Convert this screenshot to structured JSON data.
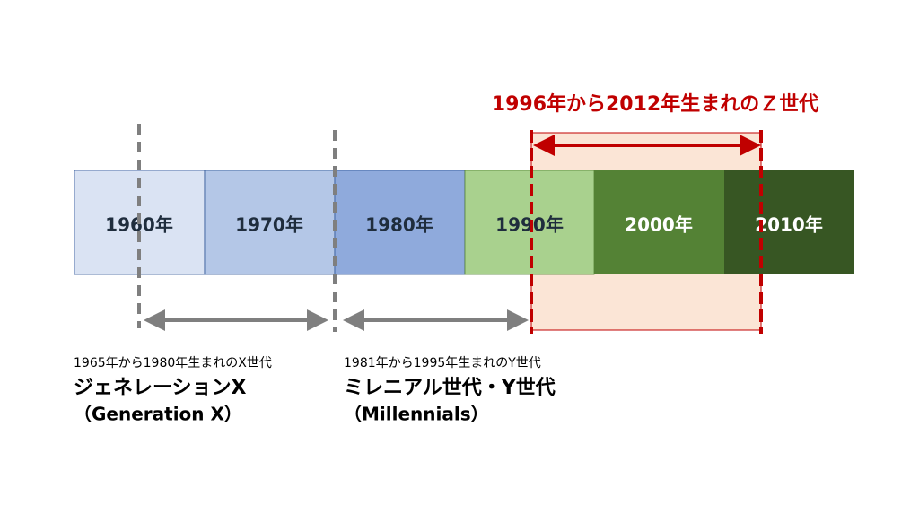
{
  "decades": [
    "1960年",
    "1970年",
    "1980年",
    "1990年",
    "2000年",
    "2010年"
  ],
  "gen_z": {
    "label": "1996年から2012年生まれのＺ世代"
  },
  "gen_x": {
    "range": "1965年から1980年生まれのX世代",
    "name": "ジェネレーションX",
    "english": "（Generation X）"
  },
  "gen_y": {
    "range": "1981年から1995年生まれのY世代",
    "name": "ミレニアル世代・Y世代",
    "english": "（Millennials）"
  }
}
